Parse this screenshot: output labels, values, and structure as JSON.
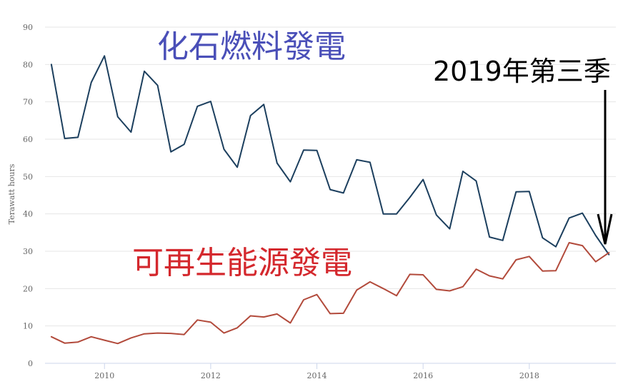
{
  "chart_data": {
    "type": "line",
    "title": "",
    "xlabel": "",
    "ylabel": "Terawatt hours",
    "ylim": [
      0,
      90
    ],
    "xlim": [
      2008.88,
      2019.63
    ],
    "yticks": [
      0,
      10,
      20,
      30,
      40,
      50,
      60,
      70,
      80,
      90
    ],
    "xticks": [
      2010,
      2012,
      2014,
      2016,
      2018
    ],
    "grid": true,
    "legend": "none",
    "series": [
      {
        "name": "化石燃料發電",
        "color": "#1c3f5e",
        "x": [
          2009.0,
          2009.25,
          2009.5,
          2009.75,
          2010.0,
          2010.25,
          2010.5,
          2010.75,
          2011.0,
          2011.25,
          2011.5,
          2011.75,
          2012.0,
          2012.25,
          2012.5,
          2012.75,
          2013.0,
          2013.25,
          2013.5,
          2013.75,
          2014.0,
          2014.25,
          2014.5,
          2014.75,
          2015.0,
          2015.25,
          2015.5,
          2015.75,
          2016.0,
          2016.25,
          2016.5,
          2016.75,
          2017.0,
          2017.25,
          2017.5,
          2017.75,
          2018.0,
          2018.25,
          2018.5,
          2018.75,
          2019.0,
          2019.25,
          2019.5
        ],
        "values": [
          80.0,
          60.2,
          60.5,
          75.2,
          82.3,
          66.0,
          61.9,
          78.2,
          74.4,
          56.6,
          58.6,
          68.8,
          70.1,
          57.3,
          52.5,
          66.3,
          69.3,
          53.6,
          48.6,
          57.1,
          57.0,
          46.5,
          45.6,
          54.5,
          53.8,
          40.0,
          40.0,
          44.4,
          49.2,
          39.7,
          36.0,
          51.4,
          48.8,
          33.8,
          32.9,
          45.9,
          46.0,
          33.6,
          31.2,
          38.9,
          40.2,
          34.2,
          29.1
        ]
      },
      {
        "name": "可再生能源發電",
        "color": "#b24a3b",
        "x": [
          2009.0,
          2009.25,
          2009.5,
          2009.75,
          2010.0,
          2010.25,
          2010.5,
          2010.75,
          2011.0,
          2011.25,
          2011.5,
          2011.75,
          2012.0,
          2012.25,
          2012.5,
          2012.75,
          2013.0,
          2013.25,
          2013.5,
          2013.75,
          2014.0,
          2014.25,
          2014.5,
          2014.75,
          2015.0,
          2015.25,
          2015.5,
          2015.75,
          2016.0,
          2016.25,
          2016.5,
          2016.75,
          2017.0,
          2017.25,
          2017.5,
          2017.75,
          2018.0,
          2018.25,
          2018.5,
          2018.75,
          2019.0,
          2019.25,
          2019.5
        ],
        "values": [
          7.1,
          5.4,
          5.7,
          7.1,
          6.2,
          5.3,
          6.8,
          7.9,
          8.1,
          8.0,
          7.7,
          11.6,
          11.0,
          8.1,
          9.5,
          12.7,
          12.4,
          13.2,
          10.8,
          17.0,
          18.4,
          13.3,
          13.4,
          19.6,
          21.8,
          20.0,
          18.1,
          23.8,
          23.7,
          19.8,
          19.4,
          20.5,
          25.2,
          23.4,
          22.6,
          27.7,
          28.6,
          24.7,
          24.8,
          32.3,
          31.5,
          27.2,
          29.6
        ]
      }
    ],
    "annotations": [
      {
        "text": "化石燃料發電",
        "color": "#4a4fb8"
      },
      {
        "text": "可再生能源發電",
        "color": "#d4282d"
      },
      {
        "text": "2019年第三季",
        "color": "#000000"
      }
    ]
  }
}
